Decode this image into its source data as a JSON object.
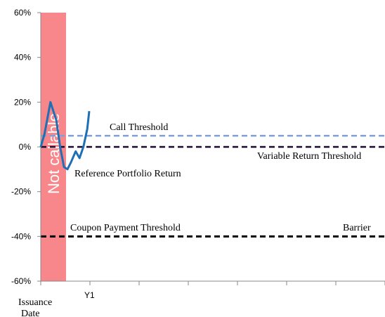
{
  "chart_data": {
    "type": "line",
    "ylim": [
      -60,
      60
    ],
    "y_ticks": [
      "60%",
      "40%",
      "20%",
      "0%",
      "-20%",
      "-40%",
      "-60%"
    ],
    "y_tick_values": [
      60,
      40,
      20,
      0,
      -20,
      -40,
      -60
    ],
    "x_tick_labels": {
      "issuance_line1": "Issuance",
      "issuance_line2": "Date",
      "y1": "Y1"
    },
    "shaded_region_label": "Not callable",
    "shaded_region_color": "#f7878a",
    "series": [
      {
        "name": "Reference Portfolio Return",
        "color": "#1f6fb5",
        "x": [
          0,
          0.08,
          0.2,
          0.32,
          0.4,
          0.48,
          0.55,
          0.62,
          0.72,
          0.8,
          0.88,
          0.96,
          1.0
        ],
        "values": [
          0,
          6,
          20,
          12,
          0,
          -9,
          -10,
          -7,
          -2,
          -5,
          0,
          8,
          16
        ]
      }
    ],
    "thresholds": [
      {
        "label": "Call Threshold",
        "value": 5,
        "color": "#7f9fd6",
        "style": "dashed"
      },
      {
        "label": "Variable Return Threshold",
        "value": 0,
        "color": "#1a0a2e",
        "style": "dashed"
      },
      {
        "label": "Coupon Payment Threshold",
        "value": -40,
        "color": "#000000",
        "style": "dashed"
      },
      {
        "label": "Barrier",
        "value": -40,
        "color": "#000000",
        "style": "dashed"
      }
    ]
  }
}
